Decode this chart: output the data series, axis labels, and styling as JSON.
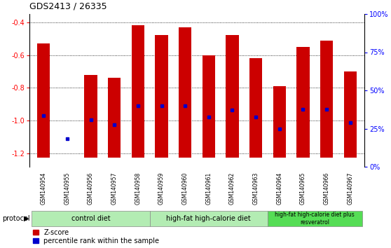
{
  "title": "GDS2413 / 26335",
  "samples": [
    "GSM140954",
    "GSM140955",
    "GSM140956",
    "GSM140957",
    "GSM140958",
    "GSM140959",
    "GSM140960",
    "GSM140961",
    "GSM140962",
    "GSM140963",
    "GSM140964",
    "GSM140965",
    "GSM140966",
    "GSM140967"
  ],
  "zscore_top": [
    -0.53,
    -1.225,
    -0.72,
    -0.74,
    -0.42,
    -0.48,
    -0.43,
    -0.6,
    -0.48,
    -0.62,
    -0.79,
    -0.55,
    -0.51,
    -0.7
  ],
  "zscore_bottom": -1.225,
  "percentile_y": [
    -0.97,
    -1.11,
    -0.995,
    -1.025,
    -0.91,
    -0.91,
    -0.91,
    -0.975,
    -0.935,
    -0.975,
    -1.05,
    -0.93,
    -0.93,
    -1.01
  ],
  "bar_color": "#cc0000",
  "percentile_color": "#0000cc",
  "bar_width": 0.55,
  "ylim_bottom": -1.28,
  "ylim_top": -0.35,
  "yticks_left": [
    -0.4,
    -0.6,
    -0.8,
    -1.0,
    -1.2
  ],
  "yticks_right_pct": [
    100,
    75,
    50,
    25,
    0
  ],
  "proto_sections": [
    {
      "xmin": -0.5,
      "xmax": 4.5,
      "color": "#b3ecb3",
      "label": "control diet",
      "fontsize": 7
    },
    {
      "xmin": 4.5,
      "xmax": 9.5,
      "color": "#b3ecb3",
      "label": "high-fat high-calorie diet",
      "fontsize": 7
    },
    {
      "xmin": 9.5,
      "xmax": 13.5,
      "color": "#55dd55",
      "label": "high-fat high-calorie diet plus\nresveratrol",
      "fontsize": 5.5
    }
  ],
  "tick_area_color": "#d0d0d0",
  "fig_width": 5.58,
  "fig_height": 3.54,
  "dpi": 100
}
